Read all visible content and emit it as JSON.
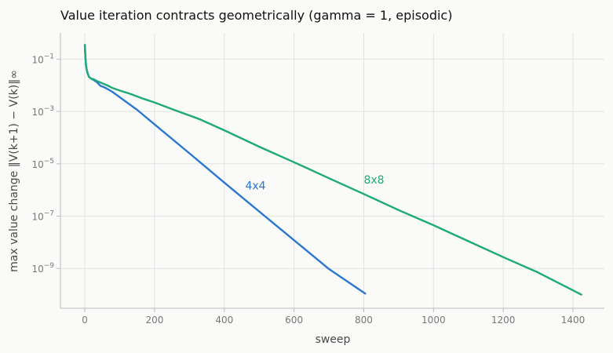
{
  "chart_data": {
    "type": "line",
    "title": "Value iteration contracts geometrically (gamma = 1, episodic)",
    "xlabel": "sweep",
    "ylabel": "max value change ‖V(k+1) − V(k)‖∞",
    "y_scale": "log",
    "xlim": [
      -70,
      1490
    ],
    "ylim": [
      3e-11,
      1.0
    ],
    "grid": true,
    "legend": "none",
    "x_ticks": [
      0,
      200,
      400,
      600,
      800,
      1000,
      1200,
      1400
    ],
    "x_tick_labels": [
      "0",
      "200",
      "400",
      "600",
      "800",
      "1000",
      "1200",
      "1400"
    ],
    "y_ticks": [
      {
        "value": 0.1,
        "base": "10",
        "exp": "−1"
      },
      {
        "value": 0.001,
        "base": "10",
        "exp": "−3"
      },
      {
        "value": 1e-05,
        "base": "10",
        "exp": "−5"
      },
      {
        "value": 1e-07,
        "base": "10",
        "exp": "−7"
      },
      {
        "value": 1e-09,
        "base": "10",
        "exp": "−9"
      }
    ],
    "series": [
      {
        "name": "4x4",
        "color": "#2b78d0",
        "label_at": {
          "x": 460,
          "y": 1.5e-06
        },
        "x": [
          0,
          1,
          2,
          3,
          5,
          8,
          12,
          18,
          25,
          35,
          45,
          55,
          65,
          80,
          100,
          150,
          200,
          300,
          400,
          500,
          600,
          700,
          804
        ],
        "y": [
          0.35,
          0.18,
          0.1,
          0.065,
          0.042,
          0.028,
          0.021,
          0.018,
          0.016,
          0.013,
          0.0095,
          0.0085,
          0.0072,
          0.0055,
          0.0035,
          0.00115,
          0.00032,
          2.5e-05,
          1.9e-06,
          1.5e-07,
          1.2e-08,
          9.5e-10,
          1.1e-10
        ]
      },
      {
        "name": "8x8",
        "color": "#1eaa78",
        "label_at": {
          "x": 800,
          "y": 2.5e-06
        },
        "x": [
          0,
          1,
          2,
          3,
          5,
          8,
          12,
          18,
          25,
          35,
          50,
          65,
          80,
          100,
          130,
          170,
          200,
          260,
          330,
          400,
          500,
          600,
          700,
          800,
          900,
          1000,
          1100,
          1200,
          1300,
          1424
        ],
        "y": [
          0.35,
          0.18,
          0.1,
          0.065,
          0.042,
          0.028,
          0.021,
          0.018,
          0.017,
          0.0145,
          0.012,
          0.0098,
          0.0078,
          0.0063,
          0.0047,
          0.003,
          0.0022,
          0.0011,
          0.0005,
          0.00019,
          4.5e-05,
          1.15e-05,
          2.8e-06,
          7e-07,
          1.7e-07,
          4.5e-08,
          1.1e-08,
          2.7e-09,
          7e-10,
          1e-10
        ]
      }
    ]
  }
}
